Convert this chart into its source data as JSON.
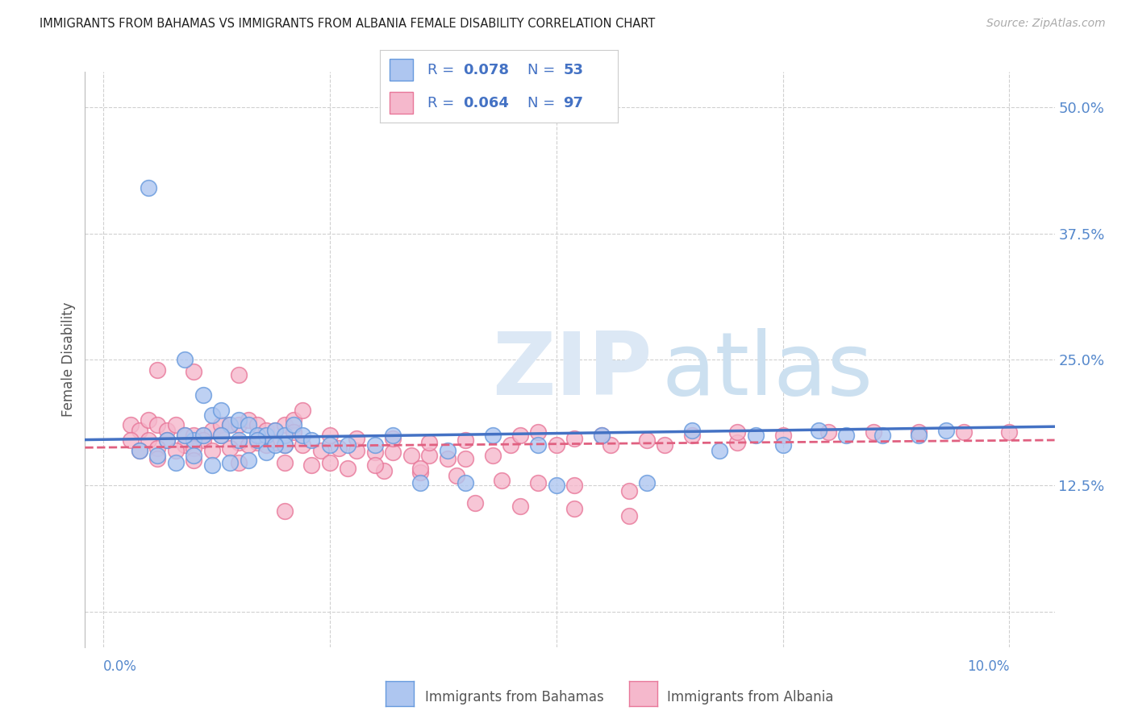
{
  "title": "IMMIGRANTS FROM BAHAMAS VS IMMIGRANTS FROM ALBANIA FEMALE DISABILITY CORRELATION CHART",
  "source": "Source: ZipAtlas.com",
  "ylabel": "Female Disability",
  "series": [
    {
      "name": "Immigrants from Bahamas",
      "color": "#aec6f0",
      "edge_color": "#6699dd",
      "R": 0.078,
      "N": 53,
      "trend_color": "#4472c4",
      "trend_style": "-",
      "legend_label": "R = 0.078   N = 53"
    },
    {
      "name": "Immigrants from Albania",
      "color": "#f5b8cc",
      "edge_color": "#e87799",
      "R": 0.064,
      "N": 97,
      "trend_color": "#e06080",
      "trend_style": "--",
      "legend_label": "R = 0.064   N = 97"
    }
  ],
  "ylim": [
    -0.035,
    0.535
  ],
  "xlim": [
    -0.002,
    0.105
  ],
  "yticks": [
    0.0,
    0.125,
    0.25,
    0.375,
    0.5
  ],
  "ytick_labels": [
    "12.5%",
    "25.0%",
    "37.5%",
    "50.0%"
  ],
  "xtick_positions": [
    0.0,
    0.025,
    0.05,
    0.075,
    0.1
  ],
  "grid_color": "#d0d0d0",
  "background_color": "#ffffff",
  "title_color": "#222222",
  "axis_color": "#5588cc",
  "legend_text_color": "#4472c4",
  "legend_label_color": "#333333",
  "bahamas_x": [
    0.005,
    0.007,
    0.009,
    0.011,
    0.012,
    0.013,
    0.014,
    0.015,
    0.016,
    0.017,
    0.018,
    0.019,
    0.02,
    0.021,
    0.022,
    0.01,
    0.011,
    0.013,
    0.015,
    0.017,
    0.02,
    0.023,
    0.027,
    0.032,
    0.038,
    0.043,
    0.048,
    0.055,
    0.065,
    0.072,
    0.079,
    0.086,
    0.093,
    0.006,
    0.008,
    0.01,
    0.012,
    0.014,
    0.016,
    0.018,
    0.025,
    0.03,
    0.035,
    0.04,
    0.05,
    0.06,
    0.068,
    0.075,
    0.082,
    0.09,
    0.004,
    0.009,
    0.019
  ],
  "bahamas_y": [
    0.42,
    0.17,
    0.25,
    0.215,
    0.195,
    0.2,
    0.185,
    0.19,
    0.185,
    0.175,
    0.175,
    0.18,
    0.175,
    0.185,
    0.175,
    0.17,
    0.175,
    0.175,
    0.17,
    0.17,
    0.165,
    0.17,
    0.165,
    0.175,
    0.16,
    0.175,
    0.165,
    0.175,
    0.18,
    0.175,
    0.18,
    0.175,
    0.18,
    0.155,
    0.148,
    0.155,
    0.145,
    0.148,
    0.15,
    0.158,
    0.165,
    0.165,
    0.128,
    0.128,
    0.125,
    0.128,
    0.16,
    0.165,
    0.175,
    0.175,
    0.16,
    0.175,
    0.165
  ],
  "albania_x": [
    0.003,
    0.004,
    0.005,
    0.006,
    0.007,
    0.008,
    0.009,
    0.01,
    0.011,
    0.012,
    0.013,
    0.014,
    0.015,
    0.016,
    0.017,
    0.018,
    0.019,
    0.02,
    0.021,
    0.022,
    0.003,
    0.005,
    0.007,
    0.009,
    0.011,
    0.013,
    0.015,
    0.017,
    0.019,
    0.021,
    0.004,
    0.006,
    0.008,
    0.01,
    0.012,
    0.014,
    0.016,
    0.018,
    0.02,
    0.022,
    0.024,
    0.026,
    0.028,
    0.03,
    0.032,
    0.034,
    0.036,
    0.038,
    0.04,
    0.043,
    0.025,
    0.028,
    0.032,
    0.036,
    0.04,
    0.045,
    0.05,
    0.056,
    0.062,
    0.07,
    0.023,
    0.027,
    0.031,
    0.035,
    0.039,
    0.044,
    0.048,
    0.052,
    0.058,
    0.048,
    0.055,
    0.06,
    0.065,
    0.07,
    0.075,
    0.08,
    0.085,
    0.09,
    0.095,
    0.1,
    0.006,
    0.01,
    0.015,
    0.02,
    0.025,
    0.03,
    0.035,
    0.041,
    0.046,
    0.052,
    0.006,
    0.01,
    0.015,
    0.02,
    0.046,
    0.052,
    0.058
  ],
  "albania_y": [
    0.185,
    0.18,
    0.19,
    0.185,
    0.18,
    0.185,
    0.175,
    0.175,
    0.175,
    0.18,
    0.185,
    0.185,
    0.185,
    0.19,
    0.185,
    0.18,
    0.18,
    0.185,
    0.19,
    0.2,
    0.17,
    0.17,
    0.17,
    0.165,
    0.17,
    0.175,
    0.168,
    0.168,
    0.168,
    0.178,
    0.16,
    0.162,
    0.16,
    0.162,
    0.16,
    0.162,
    0.165,
    0.165,
    0.165,
    0.165,
    0.16,
    0.162,
    0.16,
    0.158,
    0.158,
    0.155,
    0.155,
    0.152,
    0.152,
    0.155,
    0.175,
    0.172,
    0.172,
    0.168,
    0.17,
    0.165,
    0.165,
    0.165,
    0.165,
    0.168,
    0.145,
    0.142,
    0.14,
    0.138,
    0.135,
    0.13,
    0.128,
    0.125,
    0.12,
    0.178,
    0.175,
    0.17,
    0.175,
    0.178,
    0.175,
    0.178,
    0.178,
    0.178,
    0.178,
    0.178,
    0.152,
    0.15,
    0.148,
    0.148,
    0.148,
    0.145,
    0.142,
    0.108,
    0.105,
    0.102,
    0.24,
    0.238,
    0.235,
    0.1,
    0.175,
    0.172,
    0.095
  ]
}
